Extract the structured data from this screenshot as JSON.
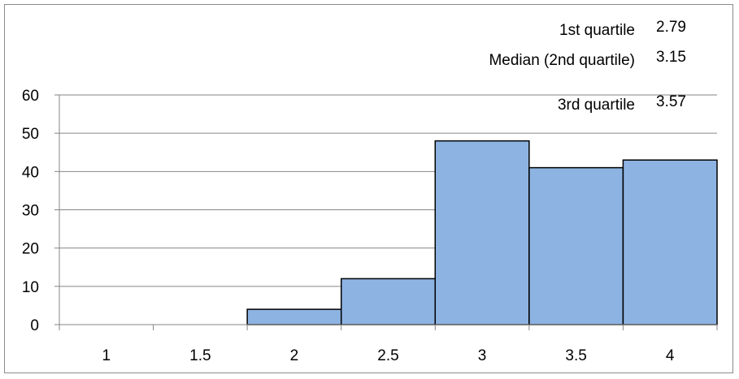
{
  "chart_data": {
    "type": "bar",
    "categories": [
      "1",
      "1.5",
      "2",
      "2.5",
      "3",
      "3.5",
      "4"
    ],
    "values": [
      0,
      0,
      4,
      12,
      48,
      41,
      43
    ],
    "title": "",
    "xlabel": "",
    "ylabel": "",
    "ylim": [
      0,
      60
    ],
    "yticks": [
      "0",
      "10",
      "20",
      "30",
      "40",
      "50",
      "60"
    ],
    "grid": true,
    "bar_color": "#8db3e2",
    "bar_edge_color": "#000000",
    "annotations": [
      {
        "label": "1st quartile",
        "value": "2.79"
      },
      {
        "label": "Median (2nd quartile)",
        "value": "3.15"
      },
      {
        "label": "3rd quartile",
        "value": "3.57"
      }
    ]
  }
}
